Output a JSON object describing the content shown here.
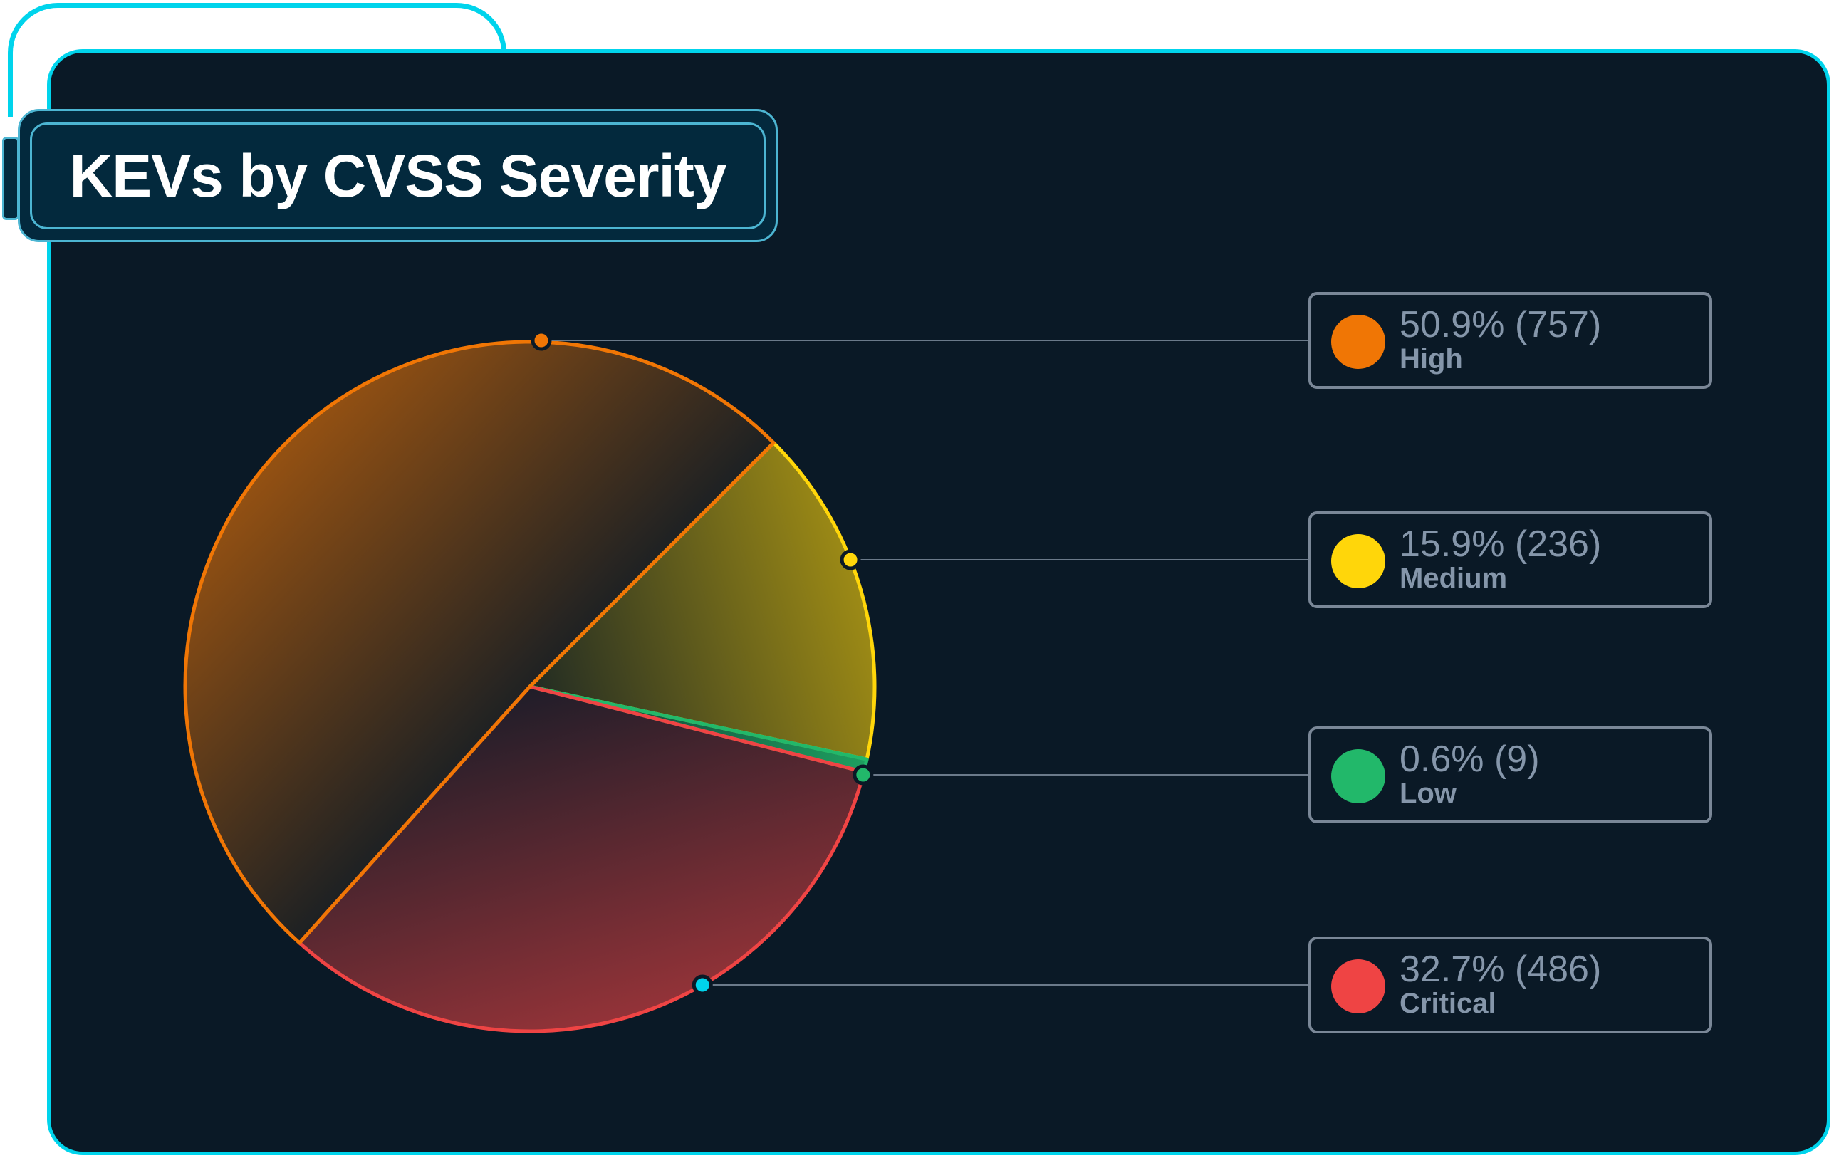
{
  "chart_data": {
    "type": "pie",
    "title": "KEVs by CVSS Severity",
    "slices": [
      {
        "label": "Medium",
        "percent": 15.9,
        "count": 236,
        "color": "#ffd60a",
        "display": "15.9% (236)"
      },
      {
        "label": "Low",
        "percent": 0.6,
        "count": 9,
        "color": "#22b86a",
        "display": "0.6% (9)"
      },
      {
        "label": "Critical",
        "percent": 32.7,
        "count": 486,
        "color": "#ef4444",
        "display": "32.7% (486)"
      },
      {
        "label": "High",
        "percent": 50.9,
        "count": 757,
        "color": "#f07605",
        "display": "50.9% (757)"
      }
    ],
    "legend": [
      {
        "label": "High",
        "display": "50.9% (757)",
        "color": "#f07605",
        "marker_color": "#f07605"
      },
      {
        "label": "Medium",
        "display": "15.9% (236)",
        "color": "#ffd60a",
        "marker_color": "#ffd60a"
      },
      {
        "label": "Low",
        "display": "0.6% (9)",
        "color": "#22b86a",
        "marker_color": "#22b86a"
      },
      {
        "label": "Critical",
        "display": "32.7% (486)",
        "color": "#ef4444",
        "marker_color": "#00d4ec"
      }
    ],
    "legend_placement": "right"
  },
  "colors": {
    "accent": "#00d4ec",
    "background": "#0a1926",
    "title_box": "#03293d"
  }
}
